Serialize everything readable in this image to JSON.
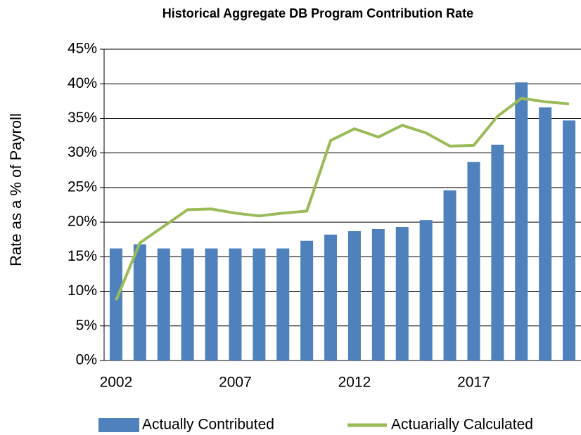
{
  "chart_data": {
    "type": "bar_line",
    "title": "Historical Aggregate DB Program Contribution Rate",
    "y_label": "Rate as a % of Payroll",
    "categories": [
      "2002",
      null,
      null,
      null,
      null,
      "2007",
      null,
      null,
      null,
      null,
      "2012",
      null,
      null,
      null,
      null,
      "2017",
      null,
      null,
      null,
      null
    ],
    "series": [
      {
        "name": "Actually Contributed",
        "type": "bar",
        "color": "#4f81bd",
        "values": [
          16.2,
          16.8,
          16.2,
          16.2,
          16.2,
          16.2,
          16.2,
          16.2,
          17.3,
          18.2,
          18.7,
          19.0,
          19.3,
          20.3,
          24.6,
          28.7,
          31.2,
          40.2,
          36.6,
          34.7
        ]
      },
      {
        "name": "Actuarially Calculated",
        "type": "line",
        "color": "#9bbb59",
        "values": [
          8.7,
          17.0,
          19.4,
          21.8,
          21.9,
          21.3,
          20.9,
          21.3,
          21.6,
          31.8,
          33.5,
          32.3,
          34.0,
          32.9,
          31.0,
          31.1,
          35.3,
          37.9,
          37.4,
          37.1
        ]
      }
    ],
    "ylim": [
      0,
      45
    ],
    "yticks": [
      {
        "value": 0,
        "label": "0%"
      },
      {
        "value": 5,
        "label": "5%"
      },
      {
        "value": 10,
        "label": "10%"
      },
      {
        "value": 15,
        "label": "15%"
      },
      {
        "value": 20,
        "label": "20%"
      },
      {
        "value": 25,
        "label": "25%"
      },
      {
        "value": 30,
        "label": "30%"
      },
      {
        "value": 35,
        "label": "35%"
      },
      {
        "value": 40,
        "label": "40%"
      },
      {
        "value": 45,
        "label": "45%"
      }
    ],
    "grid": true,
    "legend": "bottom"
  }
}
